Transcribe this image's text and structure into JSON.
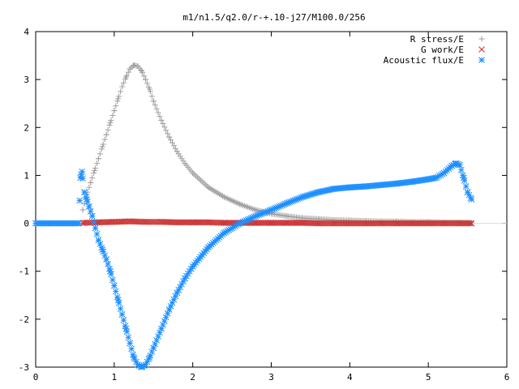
{
  "chart_data": {
    "type": "scatter",
    "title": "m1/n1.5/q2.0/r-+.10-j27/M100.0/256",
    "xlabel": "",
    "ylabel": "",
    "xlim": [
      0,
      6
    ],
    "ylim": [
      -3,
      4
    ],
    "xticks": [
      "0",
      "1",
      "2",
      "3",
      "4",
      "5",
      "6"
    ],
    "yticks": [
      "-3",
      "-2",
      "-1",
      "0",
      "1",
      "2",
      "3",
      "4"
    ],
    "grid": false,
    "legend_position": "top-right",
    "series": [
      {
        "name": "R stress/E",
        "marker": "plus",
        "color": "#a0a0a0",
        "x": [
          0.6,
          0.65,
          0.7,
          0.75,
          0.8,
          0.85,
          0.9,
          0.95,
          1.0,
          1.05,
          1.1,
          1.15,
          1.2,
          1.25,
          1.3,
          1.35,
          1.4,
          1.45,
          1.5,
          1.6,
          1.7,
          1.8,
          1.9,
          2.0,
          2.2,
          2.4,
          2.6,
          2.8,
          3.0,
          3.2,
          3.4,
          3.6,
          3.8,
          4.0,
          4.2,
          4.4,
          4.6,
          4.8,
          5.0,
          5.2,
          5.4,
          5.55
        ],
        "y": [
          0.28,
          0.6,
          0.85,
          1.1,
          1.35,
          1.6,
          1.85,
          2.1,
          2.35,
          2.6,
          2.85,
          3.05,
          3.22,
          3.3,
          3.28,
          3.18,
          3.0,
          2.8,
          2.55,
          2.15,
          1.8,
          1.5,
          1.25,
          1.05,
          0.75,
          0.55,
          0.4,
          0.28,
          0.2,
          0.15,
          0.11,
          0.09,
          0.07,
          0.06,
          0.05,
          0.04,
          0.04,
          0.03,
          0.03,
          0.02,
          0.02,
          0.01
        ]
      },
      {
        "name": "G work/E",
        "marker": "cross",
        "color": "#cc3333",
        "x": [
          0.6,
          0.8,
          1.0,
          1.2,
          1.4,
          1.6,
          1.8,
          2.0,
          2.2,
          2.4,
          2.6,
          2.8,
          3.0,
          3.2,
          3.4,
          3.6,
          3.8,
          4.0,
          4.2,
          4.4,
          4.6,
          4.8,
          5.0,
          5.2,
          5.4,
          5.55
        ],
        "y": [
          0.01,
          0.02,
          0.03,
          0.04,
          0.03,
          0.03,
          0.02,
          0.02,
          0.02,
          0.01,
          0.01,
          0.01,
          0.01,
          0.01,
          0.01,
          0.0,
          0.0,
          0.0,
          0.0,
          0.0,
          0.0,
          0.0,
          0.0,
          0.0,
          0.0,
          0.0
        ]
      },
      {
        "name": "Acoustic flux/E",
        "marker": "star",
        "color": "#1e90ff",
        "x": [
          0.0,
          0.1,
          0.2,
          0.3,
          0.4,
          0.5,
          0.55,
          0.57,
          0.59,
          0.62,
          0.65,
          0.68,
          0.72,
          0.76,
          0.8,
          0.85,
          0.9,
          0.95,
          1.0,
          1.05,
          1.1,
          1.15,
          1.2,
          1.25,
          1.3,
          1.35,
          1.4,
          1.45,
          1.5,
          1.6,
          1.7,
          1.8,
          1.9,
          2.0,
          2.2,
          2.4,
          2.6,
          2.8,
          3.0,
          3.2,
          3.4,
          3.6,
          3.8,
          4.0,
          4.2,
          4.4,
          4.6,
          4.8,
          5.0,
          5.1,
          5.2,
          5.3,
          5.35,
          5.4,
          5.45,
          5.5,
          5.55
        ],
        "y": [
          0.0,
          0.0,
          0.0,
          0.0,
          0.0,
          0.0,
          0.0,
          0.95,
          1.08,
          0.65,
          0.5,
          0.35,
          0.15,
          -0.1,
          -0.35,
          -0.55,
          -0.75,
          -1.0,
          -1.3,
          -1.6,
          -1.9,
          -2.2,
          -2.5,
          -2.8,
          -2.95,
          -3.0,
          -2.95,
          -2.8,
          -2.6,
          -2.2,
          -1.8,
          -1.45,
          -1.15,
          -0.9,
          -0.5,
          -0.2,
          0.0,
          0.15,
          0.28,
          0.42,
          0.55,
          0.65,
          0.72,
          0.75,
          0.77,
          0.8,
          0.83,
          0.87,
          0.92,
          0.95,
          1.05,
          1.2,
          1.25,
          1.22,
          0.95,
          0.65,
          0.5
        ]
      }
    ]
  }
}
